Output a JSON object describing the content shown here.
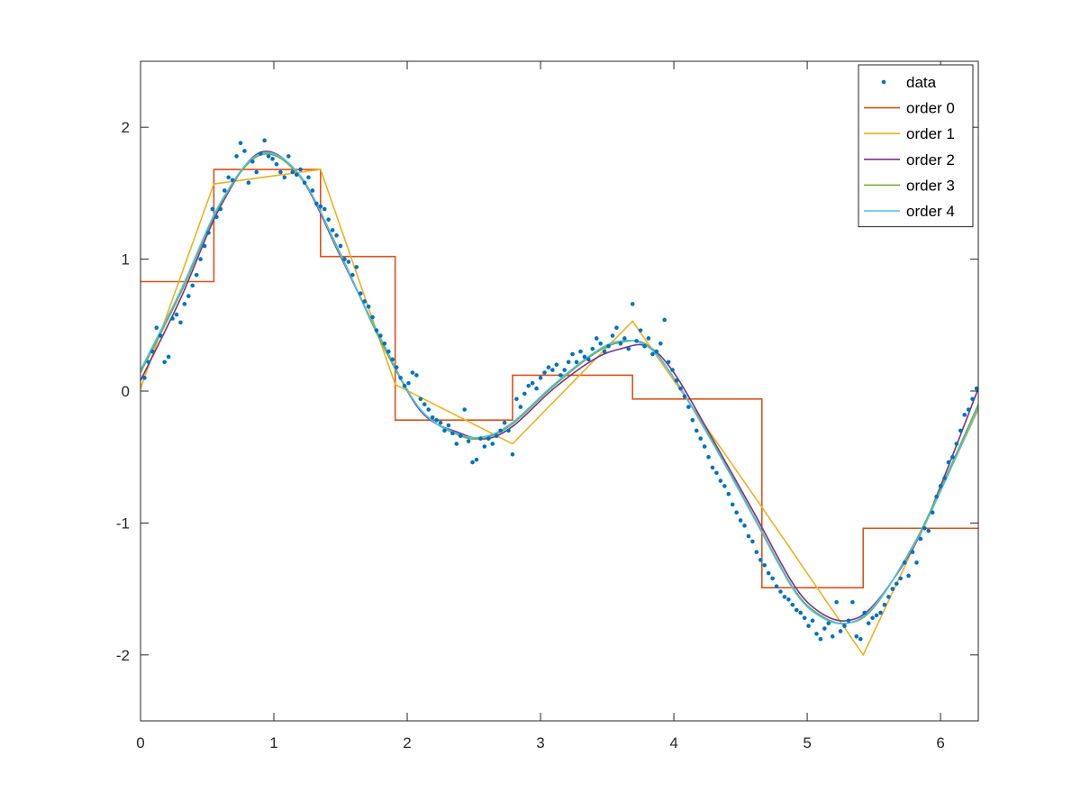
{
  "chart_data": {
    "type": "line",
    "title": "",
    "xlabel": "",
    "ylabel": "",
    "xlim": [
      0,
      6.2832
    ],
    "ylim": [
      -2.5,
      2.5
    ],
    "xticks": [
      0,
      1,
      2,
      3,
      4,
      5,
      6
    ],
    "yticks": [
      -2,
      -1,
      0,
      1,
      2
    ],
    "grid": false,
    "legend_position": "top-right",
    "series": [
      {
        "name": "data",
        "kind": "scatter",
        "color": "#0072BD",
        "points": [
          [
            0.03,
            0.1
          ],
          [
            0.06,
            0.22
          ],
          [
            0.09,
            0.3
          ],
          [
            0.12,
            0.48
          ],
          [
            0.15,
            0.42
          ],
          [
            0.18,
            0.22
          ],
          [
            0.21,
            0.26
          ],
          [
            0.24,
            0.55
          ],
          [
            0.27,
            0.58
          ],
          [
            0.3,
            0.52
          ],
          [
            0.33,
            0.66
          ],
          [
            0.36,
            0.72
          ],
          [
            0.39,
            0.8
          ],
          [
            0.42,
            0.88
          ],
          [
            0.45,
            1.0
          ],
          [
            0.48,
            1.1
          ],
          [
            0.51,
            1.2
          ],
          [
            0.54,
            1.38
          ],
          [
            0.57,
            1.32
          ],
          [
            0.6,
            1.38
          ],
          [
            0.63,
            1.52
          ],
          [
            0.66,
            1.62
          ],
          [
            0.69,
            1.6
          ],
          [
            0.72,
            1.78
          ],
          [
            0.75,
            1.88
          ],
          [
            0.78,
            1.82
          ],
          [
            0.81,
            1.58
          ],
          [
            0.84,
            1.74
          ],
          [
            0.87,
            1.66
          ],
          [
            0.9,
            1.8
          ],
          [
            0.93,
            1.9
          ],
          [
            0.96,
            1.78
          ],
          [
            0.99,
            1.76
          ],
          [
            1.02,
            1.72
          ],
          [
            1.05,
            1.66
          ],
          [
            1.08,
            1.62
          ],
          [
            1.11,
            1.78
          ],
          [
            1.14,
            1.66
          ],
          [
            1.17,
            1.64
          ],
          [
            1.2,
            1.68
          ],
          [
            1.23,
            1.58
          ],
          [
            1.26,
            1.62
          ],
          [
            1.29,
            1.52
          ],
          [
            1.32,
            1.42
          ],
          [
            1.35,
            1.4
          ],
          [
            1.38,
            1.38
          ],
          [
            1.41,
            1.3
          ],
          [
            1.44,
            1.22
          ],
          [
            1.47,
            1.18
          ],
          [
            1.5,
            1.1
          ],
          [
            1.53,
            1.0
          ],
          [
            1.56,
            0.98
          ],
          [
            1.59,
            0.88
          ],
          [
            1.62,
            0.94
          ],
          [
            1.65,
            0.74
          ],
          [
            1.68,
            0.68
          ],
          [
            1.71,
            0.64
          ],
          [
            1.74,
            0.56
          ],
          [
            1.77,
            0.46
          ],
          [
            1.8,
            0.42
          ],
          [
            1.83,
            0.36
          ],
          [
            1.86,
            0.3
          ],
          [
            1.89,
            0.24
          ],
          [
            1.92,
            0.18
          ],
          [
            1.95,
            0.1
          ],
          [
            1.98,
            0.04
          ],
          [
            2.01,
            0.06
          ],
          [
            2.04,
            0.14
          ],
          [
            2.07,
            0.12
          ],
          [
            2.1,
            -0.06
          ],
          [
            2.13,
            -0.1
          ],
          [
            2.16,
            -0.14
          ],
          [
            2.19,
            -0.2
          ],
          [
            2.22,
            -0.22
          ],
          [
            2.25,
            -0.24
          ],
          [
            2.28,
            -0.3
          ],
          [
            2.31,
            -0.26
          ],
          [
            2.34,
            -0.32
          ],
          [
            2.37,
            -0.4
          ],
          [
            2.4,
            -0.34
          ],
          [
            2.43,
            -0.14
          ],
          [
            2.46,
            -0.38
          ],
          [
            2.49,
            -0.54
          ],
          [
            2.52,
            -0.52
          ],
          [
            2.55,
            -0.36
          ],
          [
            2.58,
            -0.42
          ],
          [
            2.61,
            -0.36
          ],
          [
            2.64,
            -0.4
          ],
          [
            2.67,
            -0.34
          ],
          [
            2.7,
            -0.3
          ],
          [
            2.73,
            -0.24
          ],
          [
            2.76,
            -0.3
          ],
          [
            2.79,
            -0.48
          ],
          [
            2.82,
            -0.06
          ],
          [
            2.85,
            -0.12
          ],
          [
            2.88,
            -0.02
          ],
          [
            2.91,
            0.04
          ],
          [
            2.94,
            0.06
          ],
          [
            2.97,
            0.02
          ],
          [
            3.0,
            0.1
          ],
          [
            3.03,
            0.14
          ],
          [
            3.06,
            0.18
          ],
          [
            3.09,
            0.16
          ],
          [
            3.12,
            0.2
          ],
          [
            3.15,
            0.12
          ],
          [
            3.18,
            0.16
          ],
          [
            3.21,
            0.22
          ],
          [
            3.24,
            0.28
          ],
          [
            3.27,
            0.22
          ],
          [
            3.3,
            0.3
          ],
          [
            3.33,
            0.26
          ],
          [
            3.36,
            0.24
          ],
          [
            3.39,
            0.32
          ],
          [
            3.42,
            0.4
          ],
          [
            3.45,
            0.36
          ],
          [
            3.48,
            0.3
          ],
          [
            3.51,
            0.34
          ],
          [
            3.54,
            0.42
          ],
          [
            3.57,
            0.48
          ],
          [
            3.6,
            0.36
          ],
          [
            3.63,
            0.4
          ],
          [
            3.66,
            0.32
          ],
          [
            3.69,
            0.66
          ],
          [
            3.72,
            0.38
          ],
          [
            3.75,
            0.46
          ],
          [
            3.78,
            0.34
          ],
          [
            3.81,
            0.4
          ],
          [
            3.84,
            0.28
          ],
          [
            3.87,
            0.3
          ],
          [
            3.9,
            0.36
          ],
          [
            3.93,
            0.54
          ],
          [
            3.96,
            0.22
          ],
          [
            3.99,
            0.16
          ],
          [
            4.02,
            0.08
          ],
          [
            4.05,
            0.02
          ],
          [
            4.08,
            -0.04
          ],
          [
            4.11,
            -0.12
          ],
          [
            4.14,
            -0.22
          ],
          [
            4.17,
            -0.3
          ],
          [
            4.2,
            -0.36
          ],
          [
            4.23,
            -0.42
          ],
          [
            4.26,
            -0.5
          ],
          [
            4.29,
            -0.58
          ],
          [
            4.32,
            -0.62
          ],
          [
            4.35,
            -0.68
          ],
          [
            4.38,
            -0.72
          ],
          [
            4.41,
            -0.78
          ],
          [
            4.44,
            -0.86
          ],
          [
            4.47,
            -0.92
          ],
          [
            4.5,
            -0.98
          ],
          [
            4.53,
            -1.02
          ],
          [
            4.56,
            -1.1
          ],
          [
            4.59,
            -1.14
          ],
          [
            4.62,
            -1.22
          ],
          [
            4.65,
            -1.28
          ],
          [
            4.68,
            -1.32
          ],
          [
            4.71,
            -1.38
          ],
          [
            4.74,
            -1.42
          ],
          [
            4.77,
            -1.48
          ],
          [
            4.8,
            -1.52
          ],
          [
            4.83,
            -1.56
          ],
          [
            4.86,
            -1.58
          ],
          [
            4.89,
            -1.62
          ],
          [
            4.92,
            -1.66
          ],
          [
            4.95,
            -1.68
          ],
          [
            4.98,
            -1.72
          ],
          [
            5.01,
            -1.78
          ],
          [
            5.04,
            -1.74
          ],
          [
            5.07,
            -1.84
          ],
          [
            5.1,
            -1.88
          ],
          [
            5.13,
            -1.8
          ],
          [
            5.16,
            -1.76
          ],
          [
            5.19,
            -1.86
          ],
          [
            5.22,
            -1.6
          ],
          [
            5.25,
            -1.82
          ],
          [
            5.28,
            -1.78
          ],
          [
            5.31,
            -1.74
          ],
          [
            5.34,
            -1.6
          ],
          [
            5.37,
            -1.86
          ],
          [
            5.4,
            -1.88
          ],
          [
            5.43,
            -1.68
          ],
          [
            5.46,
            -1.76
          ],
          [
            5.49,
            -1.72
          ],
          [
            5.52,
            -1.7
          ],
          [
            5.55,
            -1.68
          ],
          [
            5.58,
            -1.62
          ],
          [
            5.61,
            -1.56
          ],
          [
            5.64,
            -1.5
          ],
          [
            5.67,
            -1.46
          ],
          [
            5.7,
            -1.42
          ],
          [
            5.73,
            -1.3
          ],
          [
            5.76,
            -1.4
          ],
          [
            5.79,
            -1.22
          ],
          [
            5.82,
            -1.3
          ],
          [
            5.85,
            -1.12
          ],
          [
            5.88,
            -1.04
          ],
          [
            5.91,
            -1.06
          ],
          [
            5.94,
            -0.92
          ],
          [
            5.97,
            -0.8
          ],
          [
            6.0,
            -0.72
          ],
          [
            6.03,
            -0.66
          ],
          [
            6.06,
            -0.54
          ],
          [
            6.09,
            -0.5
          ],
          [
            6.12,
            -0.4
          ],
          [
            6.15,
            -0.3
          ],
          [
            6.18,
            -0.18
          ],
          [
            6.21,
            -0.14
          ],
          [
            6.24,
            -0.06
          ],
          [
            6.27,
            0.02
          ]
        ]
      },
      {
        "name": "order 0",
        "kind": "step",
        "color": "#D95319",
        "breaks": [
          0,
          0.55,
          1.35,
          1.91,
          2.79,
          3.69,
          4.66,
          5.42,
          6.2832
        ],
        "levels": [
          0.83,
          1.68,
          1.02,
          -0.22,
          0.12,
          -0.06,
          -1.49,
          -1.04
        ]
      },
      {
        "name": "order 1",
        "kind": "line",
        "color": "#EDB120",
        "points": [
          [
            0,
            0.02
          ],
          [
            0.55,
            1.57
          ],
          [
            1.35,
            1.68
          ],
          [
            1.91,
            0.05
          ],
          [
            2.79,
            -0.4
          ],
          [
            3.69,
            0.53
          ],
          [
            4.66,
            -0.88
          ],
          [
            5.42,
            -2.0
          ],
          [
            6.2832,
            -0.14
          ]
        ]
      },
      {
        "name": "order 2",
        "kind": "smooth",
        "color": "#7E2F8E",
        "points": [
          [
            0,
            0.08
          ],
          [
            0.3,
            0.7
          ],
          [
            0.6,
            1.4
          ],
          [
            0.9,
            1.81
          ],
          [
            1.2,
            1.62
          ],
          [
            1.5,
            1.02
          ],
          [
            1.8,
            0.4
          ],
          [
            2.1,
            -0.15
          ],
          [
            2.4,
            -0.32
          ],
          [
            2.6,
            -0.36
          ],
          [
            2.8,
            -0.26
          ],
          [
            3.1,
            0.02
          ],
          [
            3.4,
            0.24
          ],
          [
            3.6,
            0.32
          ],
          [
            3.8,
            0.34
          ],
          [
            4.0,
            0.14
          ],
          [
            4.3,
            -0.38
          ],
          [
            4.6,
            -0.92
          ],
          [
            4.9,
            -1.47
          ],
          [
            5.1,
            -1.68
          ],
          [
            5.3,
            -1.74
          ],
          [
            5.5,
            -1.62
          ],
          [
            5.8,
            -1.18
          ],
          [
            6.0,
            -0.72
          ],
          [
            6.2832,
            0.02
          ]
        ]
      },
      {
        "name": "order 3",
        "kind": "smooth",
        "color": "#77AC30",
        "points": [
          [
            0,
            0.14
          ],
          [
            0.3,
            0.74
          ],
          [
            0.6,
            1.42
          ],
          [
            0.9,
            1.79
          ],
          [
            1.2,
            1.62
          ],
          [
            1.5,
            1.04
          ],
          [
            1.8,
            0.38
          ],
          [
            2.1,
            -0.14
          ],
          [
            2.4,
            -0.34
          ],
          [
            2.6,
            -0.35
          ],
          [
            2.8,
            -0.24
          ],
          [
            3.1,
            0.04
          ],
          [
            3.4,
            0.28
          ],
          [
            3.6,
            0.37
          ],
          [
            3.8,
            0.35
          ],
          [
            4.0,
            0.1
          ],
          [
            4.3,
            -0.4
          ],
          [
            4.6,
            -0.95
          ],
          [
            4.9,
            -1.5
          ],
          [
            5.1,
            -1.7
          ],
          [
            5.3,
            -1.76
          ],
          [
            5.5,
            -1.64
          ],
          [
            5.8,
            -1.16
          ],
          [
            6.0,
            -0.74
          ],
          [
            6.2832,
            -0.1
          ]
        ]
      },
      {
        "name": "order 4",
        "kind": "smooth",
        "color": "#4DBEEE",
        "points": [
          [
            0,
            0.16
          ],
          [
            0.3,
            0.76
          ],
          [
            0.6,
            1.43
          ],
          [
            0.9,
            1.8
          ],
          [
            1.2,
            1.63
          ],
          [
            1.5,
            1.03
          ],
          [
            1.8,
            0.4
          ],
          [
            2.1,
            -0.14
          ],
          [
            2.4,
            -0.33
          ],
          [
            2.6,
            -0.34
          ],
          [
            2.8,
            -0.23
          ],
          [
            3.1,
            0.05
          ],
          [
            3.4,
            0.29
          ],
          [
            3.6,
            0.38
          ],
          [
            3.8,
            0.34
          ],
          [
            4.0,
            0.1
          ],
          [
            4.3,
            -0.41
          ],
          [
            4.6,
            -0.96
          ],
          [
            4.9,
            -1.51
          ],
          [
            5.1,
            -1.71
          ],
          [
            5.3,
            -1.76
          ],
          [
            5.5,
            -1.63
          ],
          [
            5.8,
            -1.17
          ],
          [
            6.0,
            -0.76
          ],
          [
            6.2832,
            -0.12
          ]
        ]
      }
    ]
  }
}
